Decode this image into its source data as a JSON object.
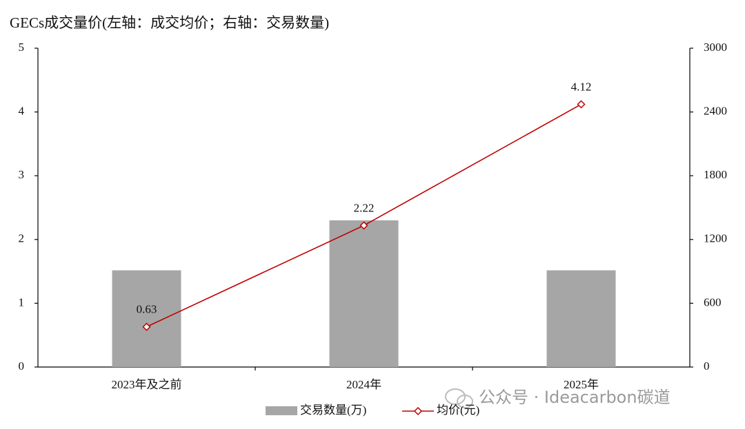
{
  "chart_data": {
    "type": "combo",
    "title": "GECs成交量价(左轴：成交均价；右轴：交易数量)",
    "categories": [
      "2023年及之前",
      "2024年",
      "2025年"
    ],
    "series": [
      {
        "name": "交易数量(万)",
        "type": "bar",
        "axis": "y2",
        "color": "#a6a6a6",
        "values": [
          910,
          1380,
          910
        ]
      },
      {
        "name": "均价(元)",
        "type": "line",
        "axis": "y",
        "color": "#c00000",
        "values": [
          0.63,
          2.22,
          4.12
        ]
      }
    ],
    "ylim": [
      0,
      5
    ],
    "yticks": [
      0,
      1,
      2,
      3,
      4,
      5
    ],
    "y2lim": [
      0,
      3000
    ],
    "y2ticks": [
      0,
      600,
      1200,
      1800,
      2400,
      3000
    ],
    "grid": false,
    "watermark": "公众号 · Ideacarbon碳道"
  }
}
